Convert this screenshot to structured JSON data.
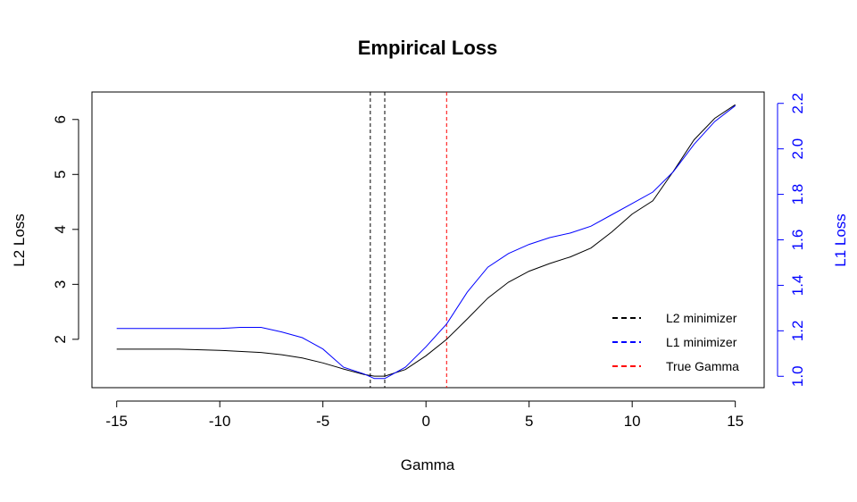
{
  "chart_data": {
    "type": "line",
    "title": "Empirical Loss",
    "xlabel": "Gamma",
    "ylabel_left": "L2 Loss",
    "ylabel_right": "L1 Loss",
    "xlim": [
      -16.2,
      16.4
    ],
    "ylim_left": [
      1.12,
      6.5
    ],
    "ylim_right": [
      0.95,
      2.25
    ],
    "x_ticks": [
      -15,
      -10,
      -5,
      0,
      5,
      10,
      15
    ],
    "x_tick_labels": [
      "-15",
      "-10",
      "-5",
      "0",
      "5",
      "10",
      "15"
    ],
    "y_left_ticks": [
      2,
      3,
      4,
      5,
      6
    ],
    "y_left_tick_labels": [
      "2",
      "3",
      "4",
      "5",
      "6"
    ],
    "y_right_ticks": [
      1.0,
      1.2,
      1.4,
      1.6,
      1.8,
      2.0,
      2.2
    ],
    "y_right_tick_labels": [
      "1.0",
      "1.2",
      "1.4",
      "1.6",
      "1.8",
      "2.0",
      "2.2"
    ],
    "grid": false,
    "legend_position": "bottom-right",
    "series": [
      {
        "name": "L2 Loss",
        "axis": "left",
        "color": "#000000",
        "x": [
          -15,
          -12,
          -10,
          -8,
          -7,
          -6,
          -5,
          -4,
          -3,
          -2.5,
          -2,
          -1,
          0,
          1,
          2,
          3,
          4,
          5,
          6,
          7,
          8,
          9,
          10,
          11,
          12,
          13,
          14,
          15
        ],
        "y": [
          1.82,
          1.82,
          1.8,
          1.76,
          1.72,
          1.66,
          1.57,
          1.46,
          1.36,
          1.33,
          1.33,
          1.45,
          1.7,
          2.0,
          2.37,
          2.75,
          3.04,
          3.24,
          3.38,
          3.5,
          3.66,
          3.95,
          4.28,
          4.52,
          5.06,
          5.63,
          6.02,
          6.27
        ]
      },
      {
        "name": "L1 Loss",
        "axis": "right",
        "color": "#0000ff",
        "x": [
          -15,
          -12,
          -10,
          -9,
          -8,
          -7,
          -6,
          -5,
          -4.5,
          -4,
          -3,
          -2.5,
          -2,
          -1,
          0,
          1,
          2,
          3,
          4,
          5,
          6,
          7,
          8,
          9,
          10,
          11,
          12,
          13,
          14,
          15
        ],
        "y": [
          1.21,
          1.21,
          1.21,
          1.215,
          1.215,
          1.195,
          1.17,
          1.12,
          1.08,
          1.04,
          1.01,
          0.99,
          0.99,
          1.04,
          1.13,
          1.23,
          1.37,
          1.48,
          1.54,
          1.58,
          1.61,
          1.63,
          1.66,
          1.71,
          1.76,
          1.81,
          1.9,
          2.02,
          2.12,
          2.19
        ]
      }
    ],
    "vlines": [
      {
        "name": "L2 minimizer",
        "x": -2.7,
        "color": "#000000",
        "dash": "dashed"
      },
      {
        "name": "L1 minimizer",
        "x": -2.0,
        "color": "#000000",
        "dash": "dashed"
      },
      {
        "name": "True Gamma",
        "x": 1.0,
        "color": "#ff0000",
        "dash": "dashed"
      }
    ],
    "legend": [
      {
        "label": "L2 minimizer",
        "color": "#000000"
      },
      {
        "label": "L1 minimizer",
        "color": "#0000ff"
      },
      {
        "label": "True Gamma",
        "color": "#ff0000"
      }
    ],
    "colors": {
      "right_axis": "#0000ff",
      "left_axis": "#000000"
    }
  }
}
